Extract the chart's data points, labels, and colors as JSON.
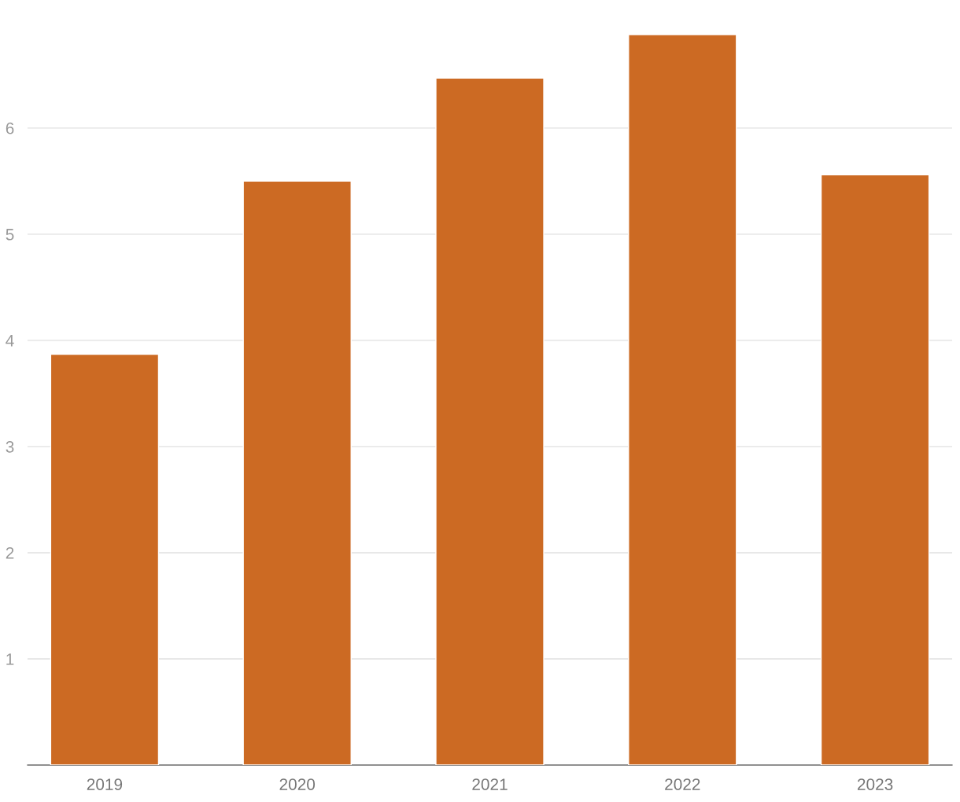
{
  "chart_data": {
    "type": "bar",
    "categories": [
      "2019",
      "2020",
      "2021",
      "2022",
      "2023"
    ],
    "values": [
      3.87,
      5.5,
      6.47,
      6.88,
      5.56
    ],
    "color": "#cc6a23",
    "ylim": [
      0,
      6.88
    ],
    "yticks": [
      1,
      2,
      3,
      4,
      5,
      6
    ],
    "grid": "y"
  }
}
